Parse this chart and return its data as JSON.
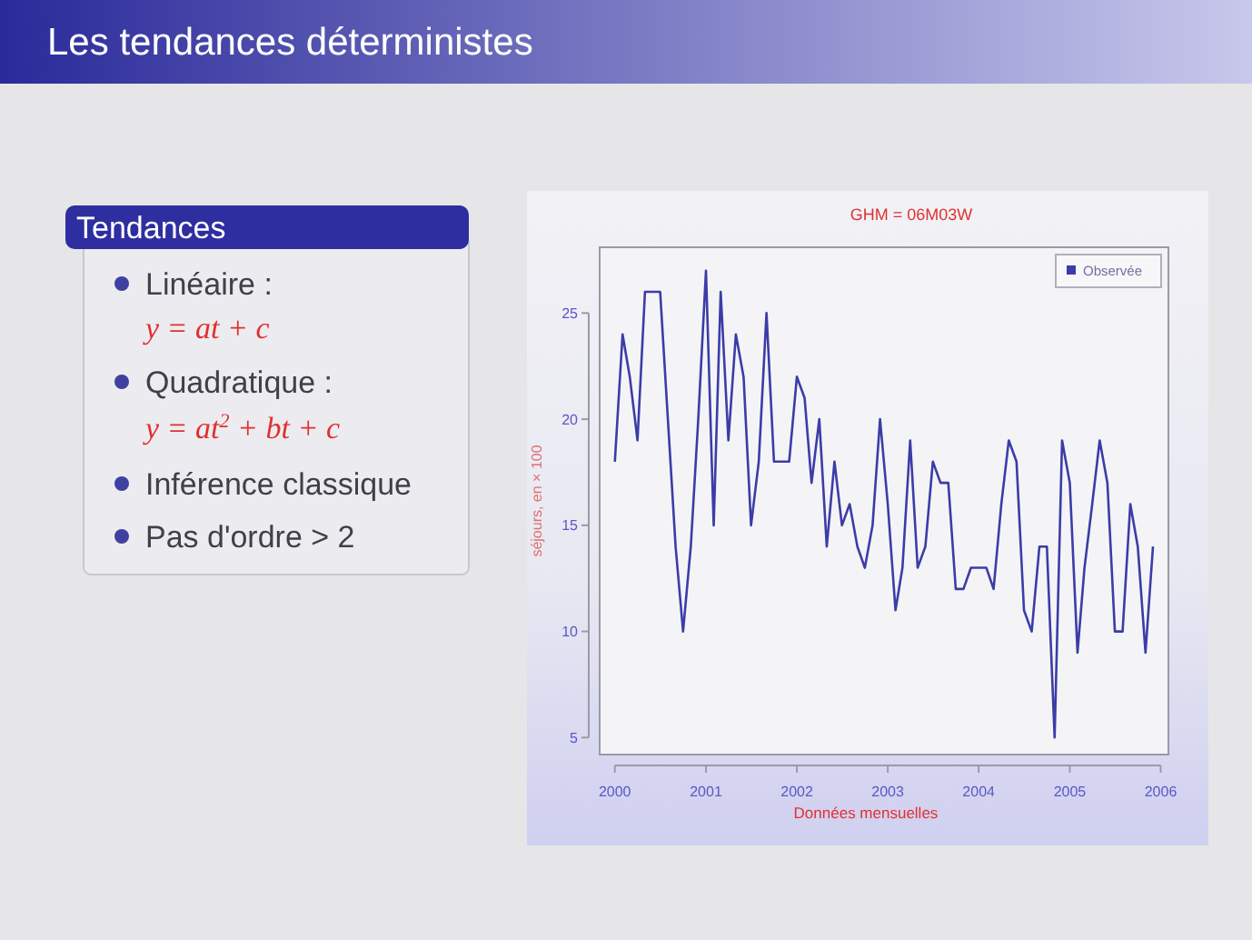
{
  "chart_data": {
    "type": "line",
    "title": "Les tendances déterministes",
    "subtitle": "GHM = 06M03W",
    "xlabel": "Données mensuelles",
    "ylabel": "séjours, en × 100",
    "annotations": [
      "Tendances",
      "Linéaire :",
      "y = at + c",
      "Quadratique :",
      "y = at$^{2}$ + bt + c",
      "Inférence classique",
      "Pas d'ordre > 2"
    ],
    "x": [
      "2000-01",
      "2000-02",
      "2000-03",
      "2000-04",
      "2000-05",
      "2000-06",
      "2000-07",
      "2000-08",
      "2000-09",
      "2000-10",
      "2000-11",
      "2000-12",
      "2001-01",
      "2001-02",
      "2001-03",
      "2001-04",
      "2001-05",
      "2001-06",
      "2001-07",
      "2001-08",
      "2001-09",
      "2001-10",
      "2001-11",
      "2001-12",
      "2002-01",
      "2002-02",
      "2002-03",
      "2002-04",
      "2002-05",
      "2002-06",
      "2002-07",
      "2002-08",
      "2002-09",
      "2002-10",
      "2002-11",
      "2002-12",
      "2003-01",
      "2003-02",
      "2003-03",
      "2003-04",
      "2003-05",
      "2003-06",
      "2003-07",
      "2003-08",
      "2003-09",
      "2003-10",
      "2003-11",
      "2003-12",
      "2004-01",
      "2004-02",
      "2004-03",
      "2004-04",
      "2004-05",
      "2004-06",
      "2004-07",
      "2004-08",
      "2004-09",
      "2004-10",
      "2004-11",
      "2004-12",
      "2005-01",
      "2005-02",
      "2005-03",
      "2005-04",
      "2005-05",
      "2005-06",
      "2005-07",
      "2005-08",
      "2005-09",
      "2005-10",
      "2005-11",
      "2005-12"
    ],
    "series": [
      {
        "name": "Observée",
        "color": "#3c3ca8",
        "values": [
          18,
          24,
          22,
          19,
          26,
          26,
          26,
          20,
          14,
          10,
          14,
          20,
          27,
          15,
          26,
          19,
          24,
          22,
          15,
          18,
          25,
          18,
          18,
          18,
          22,
          21,
          17,
          20,
          14,
          18,
          15,
          16,
          14,
          13,
          15,
          20,
          16,
          11,
          13,
          19,
          13,
          14,
          18,
          17,
          17,
          12,
          12,
          13,
          13,
          13,
          12,
          16,
          19,
          18,
          11,
          10,
          14,
          14,
          5,
          19,
          17,
          9,
          13,
          16,
          19,
          17,
          10,
          10,
          16,
          14,
          9,
          14
        ]
      }
    ],
    "xlim": [
      "1999-11",
      "2006-02"
    ],
    "xticks": [
      "2000",
      "2001",
      "2002",
      "2003",
      "2004",
      "2005",
      "2006"
    ],
    "ylim": [
      4.2,
      28.1
    ],
    "yticks": [
      5,
      10,
      15,
      20,
      25
    ],
    "grid": false,
    "legend": "top right",
    "marker": "none",
    "line_style": "solid"
  }
}
